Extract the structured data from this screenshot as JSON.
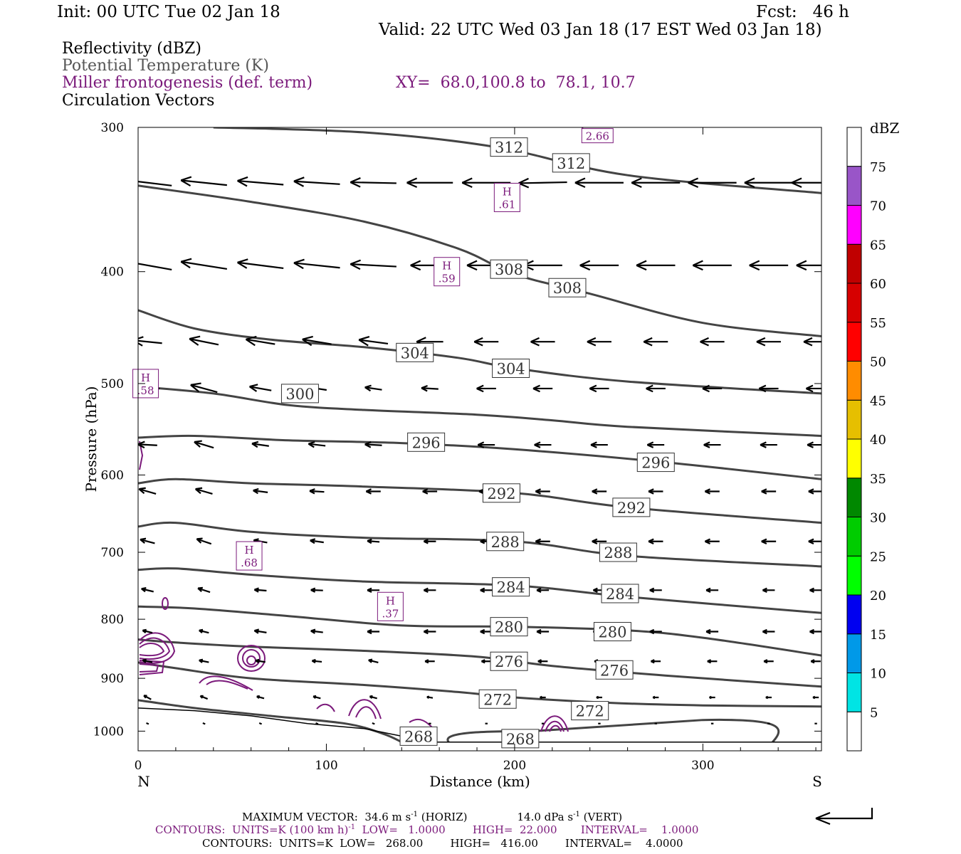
{
  "header": {
    "init": "Init: 00 UTC Tue 02 Jan 18",
    "fcst": "Fcst:   46 h",
    "valid": "Valid: 22 UTC Wed 03 Jan 18 (17 EST Wed 03 Jan 18)"
  },
  "legend": {
    "reflectivity": "Reflectivity (dBZ)",
    "theta": "Potential Temperature (K)",
    "frontogenesis": "Miller frontogenesis (def. term)",
    "xy": "XY=  68.0,100.8 to  78.1, 10.7",
    "vectors": "Circulation Vectors"
  },
  "colors": {
    "theta": "#444444",
    "frontogenesis": "#7b1a7b",
    "vector": "#000000",
    "terrain": "#000000"
  },
  "chart_data": {
    "type": "line",
    "xlabel": "Distance (km)",
    "ylabel": "Pressure (hPa)",
    "xlim": [
      0,
      363
    ],
    "ylim": [
      1040,
      300
    ],
    "y_scale": "log",
    "x_ticks": [
      0,
      100,
      200,
      300
    ],
    "y_ticks": [
      300,
      400,
      500,
      600,
      700,
      800,
      900,
      1000
    ],
    "x_end_labels": {
      "left": "N",
      "right": "S"
    },
    "contour_units": "K",
    "isentropes": [
      {
        "theta": 312,
        "points": [
          [
            40,
            300
          ],
          [
            120,
            303
          ],
          [
            190,
            312
          ],
          [
            260,
            330
          ],
          [
            363,
            342
          ]
        ]
      },
      {
        "theta": 308,
        "points": [
          [
            0,
            337
          ],
          [
            60,
            348
          ],
          [
            120,
            362
          ],
          [
            170,
            382
          ],
          [
            200,
            402
          ],
          [
            240,
            418
          ],
          [
            300,
            443
          ],
          [
            363,
            455
          ]
        ]
      },
      {
        "theta": 304,
        "points": [
          [
            0,
            432
          ],
          [
            30,
            448
          ],
          [
            70,
            458
          ],
          [
            120,
            465
          ],
          [
            170,
            475
          ],
          [
            200,
            485
          ],
          [
            260,
            498
          ],
          [
            363,
            510
          ]
        ]
      },
      {
        "theta": 300,
        "points": [
          [
            0,
            503
          ],
          [
            40,
            510
          ],
          [
            80,
            522
          ],
          [
            120,
            527
          ],
          [
            180,
            532
          ],
          [
            220,
            538
          ],
          [
            260,
            545
          ],
          [
            363,
            555
          ]
        ]
      },
      {
        "theta": 296,
        "points": [
          [
            0,
            557
          ],
          [
            30,
            555
          ],
          [
            80,
            560
          ],
          [
            140,
            563
          ],
          [
            200,
            570
          ],
          [
            280,
            585
          ],
          [
            363,
            605
          ]
        ]
      },
      {
        "theta": 292,
        "points": [
          [
            0,
            610
          ],
          [
            20,
            605
          ],
          [
            60,
            610
          ],
          [
            120,
            614
          ],
          [
            200,
            622
          ],
          [
            260,
            640
          ],
          [
            363,
            660
          ]
        ]
      },
      {
        "theta": 288,
        "points": [
          [
            0,
            665
          ],
          [
            20,
            660
          ],
          [
            60,
            672
          ],
          [
            120,
            680
          ],
          [
            200,
            685
          ],
          [
            260,
            705
          ],
          [
            363,
            720
          ]
        ]
      },
      {
        "theta": 284,
        "points": [
          [
            0,
            725
          ],
          [
            20,
            723
          ],
          [
            60,
            732
          ],
          [
            120,
            742
          ],
          [
            200,
            748
          ],
          [
            260,
            765
          ],
          [
            363,
            790
          ]
        ]
      },
      {
        "theta": 280,
        "points": [
          [
            0,
            780
          ],
          [
            30,
            783
          ],
          [
            80,
            795
          ],
          [
            140,
            810
          ],
          [
            200,
            812
          ],
          [
            260,
            818
          ],
          [
            300,
            830
          ],
          [
            363,
            860
          ]
        ]
      },
      {
        "theta": 276,
        "points": [
          [
            0,
            833
          ],
          [
            20,
            838
          ],
          [
            60,
            845
          ],
          [
            120,
            852
          ],
          [
            180,
            862
          ],
          [
            220,
            878
          ],
          [
            280,
            895
          ],
          [
            363,
            915
          ]
        ]
      },
      {
        "theta": 272,
        "points": [
          [
            0,
            872
          ],
          [
            20,
            882
          ],
          [
            60,
            900
          ],
          [
            120,
            912
          ],
          [
            170,
            925
          ],
          [
            200,
            935
          ],
          [
            250,
            945
          ],
          [
            300,
            950
          ],
          [
            363,
            952
          ]
        ]
      },
      {
        "theta": 268,
        "points": [
          [
            140,
            1022
          ],
          [
            130,
            1005
          ],
          [
            110,
            985
          ],
          [
            70,
            970
          ],
          [
            30,
            955
          ],
          [
            0,
            940
          ]
        ]
      }
    ],
    "contour_labels": [
      {
        "theta": "312",
        "x": 197,
        "p": 312
      },
      {
        "theta": "312",
        "x": 230,
        "p": 322
      },
      {
        "theta": "308",
        "x": 197,
        "p": 398
      },
      {
        "theta": "308",
        "x": 228,
        "p": 413
      },
      {
        "theta": "304",
        "x": 147,
        "p": 470
      },
      {
        "theta": "304",
        "x": 198,
        "p": 485
      },
      {
        "theta": "300",
        "x": 86,
        "p": 510
      },
      {
        "theta": "296",
        "x": 153,
        "p": 562
      },
      {
        "theta": "296",
        "x": 275,
        "p": 585
      },
      {
        "theta": "292",
        "x": 193,
        "p": 622
      },
      {
        "theta": "292",
        "x": 262,
        "p": 640
      },
      {
        "theta": "288",
        "x": 195,
        "p": 685
      },
      {
        "theta": "288",
        "x": 255,
        "p": 700
      },
      {
        "theta": "284",
        "x": 198,
        "p": 750
      },
      {
        "theta": "284",
        "x": 256,
        "p": 760
      },
      {
        "theta": "280",
        "x": 197,
        "p": 812
      },
      {
        "theta": "280",
        "x": 252,
        "p": 820
      },
      {
        "theta": "276",
        "x": 197,
        "p": 870
      },
      {
        "theta": "276",
        "x": 253,
        "p": 885
      },
      {
        "theta": "272",
        "x": 191,
        "p": 938
      },
      {
        "theta": "272",
        "x": 240,
        "p": 960
      },
      {
        "theta": "268",
        "x": 149,
        "p": 1010
      },
      {
        "theta": "268",
        "x": 203,
        "p": 1015
      }
    ],
    "frontogenesis_maxima": [
      {
        "label": "H",
        "value": ".61",
        "x": 196,
        "p": 345
      },
      {
        "label": "H",
        "value": ".59",
        "x": 164,
        "p": 400
      },
      {
        "label": "H",
        "value": ".58",
        "x": 4,
        "p": 500
      },
      {
        "label": "H",
        "value": ".68",
        "x": 59,
        "p": 705
      },
      {
        "label": "H",
        "value": ".37",
        "x": 134,
        "p": 780
      },
      {
        "label": "",
        "value": "2.66",
        "x": 244,
        "p": 305
      }
    ],
    "terrain_surface": [
      [
        0,
        955
      ],
      [
        30,
        960
      ],
      [
        60,
        970
      ],
      [
        90,
        985
      ],
      [
        120,
        995
      ],
      [
        140,
        1010
      ],
      [
        155,
        1022
      ],
      [
        200,
        1022
      ],
      [
        363,
        1022
      ]
    ],
    "vector_grid": {
      "x": [
        5,
        35,
        65,
        95,
        125,
        155,
        185,
        215,
        245,
        275,
        305,
        335,
        360
      ],
      "rows": [
        {
          "p": 335,
          "u": [
            -1.0,
            -0.95,
            -0.95,
            -0.95,
            -0.95,
            -0.95,
            -1.0,
            -1.0,
            -1.0,
            -1.0,
            -1.0,
            -1.0,
            -1.0
          ],
          "w": [
            0.12,
            0.1,
            0.08,
            0.06,
            0.02,
            0,
            0,
            -0.02,
            0,
            0,
            0,
            0,
            0
          ]
        },
        {
          "p": 395,
          "u": [
            -1.0,
            -0.95,
            -0.95,
            -0.95,
            -0.95,
            -0.8,
            -0.8,
            -0.8,
            -0.8,
            -0.8,
            -0.8,
            -0.8,
            -0.8
          ],
          "w": [
            0.18,
            0.15,
            0.12,
            0.1,
            0.05,
            0,
            0,
            0,
            0,
            0,
            0,
            0,
            0
          ]
        },
        {
          "p": 460,
          "u": [
            -0.6,
            -0.6,
            -0.6,
            -0.6,
            -0.6,
            -0.55,
            -0.5,
            -0.5,
            -0.5,
            -0.5,
            -0.5,
            -0.5,
            -0.5
          ],
          "w": [
            0.06,
            0.12,
            0.1,
            0.1,
            0.08,
            0,
            0,
            0,
            0,
            0,
            0,
            0,
            0
          ]
        },
        {
          "p": 505,
          "u": [
            -0.5,
            -0.55,
            -0.45,
            -0.4,
            -0.35,
            -0.35,
            -0.4,
            -0.4,
            -0.4,
            -0.4,
            -0.4,
            -0.4,
            -0.4
          ],
          "w": [
            0,
            0.15,
            0.08,
            0.06,
            0.05,
            0.02,
            0,
            0,
            0,
            0,
            0,
            0,
            0
          ]
        },
        {
          "p": 565,
          "u": [
            -0.4,
            -0.4,
            -0.35,
            -0.35,
            -0.35,
            -0.35,
            -0.35,
            -0.35,
            -0.35,
            -0.35,
            -0.35,
            -0.35,
            -0.35
          ],
          "w": [
            0.02,
            0.12,
            0.05,
            0.04,
            0.02,
            0,
            0,
            0,
            0,
            0,
            0,
            0,
            0
          ]
        },
        {
          "p": 620,
          "u": [
            -0.35,
            -0.35,
            -0.3,
            -0.3,
            -0.3,
            -0.3,
            -0.3,
            -0.3,
            -0.3,
            -0.3,
            -0.3,
            -0.3,
            -0.3
          ],
          "w": [
            0.1,
            0.1,
            0.04,
            0.02,
            0,
            0,
            0,
            0,
            0,
            0,
            0,
            0,
            0
          ]
        },
        {
          "p": 685,
          "u": [
            -0.3,
            -0.3,
            -0.28,
            -0.28,
            -0.25,
            -0.25,
            -0.25,
            -0.3,
            -0.3,
            -0.3,
            -0.3,
            -0.3,
            -0.3
          ],
          "w": [
            0.08,
            0.1,
            0.05,
            0.04,
            0.02,
            0,
            0,
            0,
            0,
            0,
            0,
            0,
            0
          ]
        },
        {
          "p": 755,
          "u": [
            -0.25,
            -0.25,
            -0.25,
            -0.25,
            -0.25,
            -0.25,
            -0.25,
            -0.25,
            -0.25,
            -0.25,
            -0.25,
            -0.25,
            -0.25
          ],
          "w": [
            0.06,
            0.08,
            0.02,
            0.01,
            0,
            0,
            0,
            0,
            0,
            0,
            0,
            0,
            0
          ]
        },
        {
          "p": 820,
          "u": [
            -0.2,
            -0.2,
            -0.25,
            -0.25,
            -0.25,
            -0.25,
            -0.25,
            -0.25,
            -0.25,
            -0.25,
            -0.25,
            -0.25,
            -0.25
          ],
          "w": [
            0.05,
            0.05,
            0.04,
            0.03,
            0,
            0,
            0,
            0,
            0,
            0,
            0,
            0,
            0
          ]
        },
        {
          "p": 870,
          "u": [
            -0.2,
            -0.2,
            -0.2,
            -0.2,
            -0.2,
            -0.2,
            -0.2,
            -0.2,
            -0.2,
            -0.2,
            -0.2,
            -0.2,
            -0.2
          ],
          "w": [
            0.04,
            0.04,
            0.03,
            0.02,
            0.05,
            0,
            0,
            0,
            0,
            0,
            0,
            0,
            0
          ]
        },
        {
          "p": 935,
          "u": [
            -0.15,
            -0.15,
            -0.15,
            -0.15,
            -0.15,
            -0.12,
            -0.12,
            -0.12,
            -0.12,
            -0.12,
            -0.12,
            -0.12,
            -0.12
          ],
          "w": [
            0.08,
            0.06,
            0.04,
            0.04,
            0.04,
            0.02,
            0,
            0,
            0,
            0,
            0,
            0,
            0
          ]
        },
        {
          "p": 985,
          "u": [
            -0.05,
            -0.05,
            -0.05,
            -0.05,
            -0.05,
            -0.05,
            -0.05,
            -0.05,
            -0.05,
            -0.05,
            -0.05,
            -0.05,
            -0.05
          ],
          "w": [
            0.02,
            0.02,
            0.02,
            0.02,
            0.02,
            0,
            0,
            0,
            0,
            0,
            0,
            0,
            0
          ]
        }
      ]
    },
    "colorbar": {
      "title": "dBZ",
      "levels": [
        "5",
        "10",
        "15",
        "20",
        "25",
        "30",
        "35",
        "40",
        "45",
        "50",
        "55",
        "60",
        "65",
        "70",
        "75"
      ],
      "colors": [
        "#00e4e4",
        "#0099e8",
        "#0000f0",
        "#00ff00",
        "#00cc00",
        "#008800",
        "#ffff00",
        "#e6bf00",
        "#ff8c00",
        "#ff0000",
        "#d60000",
        "#c00000",
        "#ff00ff",
        "#9955c8",
        "#ffffff"
      ]
    }
  },
  "footer": {
    "max_vector": "MAXIMUM VECTOR:  34.6 m s",
    "max_vector_unit": "-1",
    "max_vector_horiz": " (HORIZ)",
    "max_vector_vert": "14.0 dPa s",
    "max_vector_vert_unit": "-1",
    "max_vector_vert_tail": " (VERT)",
    "contours_fronto": "CONTOURS:  UNITS=K (100 km h)",
    "contours_fronto_sup": "-1",
    "contours_fronto_rest": "  LOW=   1.0000        HIGH=  22.000       INTERVAL=    1.0000",
    "contours_theta": "CONTOURS:  UNITS=K  LOW=   268.00        HIGH=   416.00        INTERVAL=    4.0000"
  }
}
